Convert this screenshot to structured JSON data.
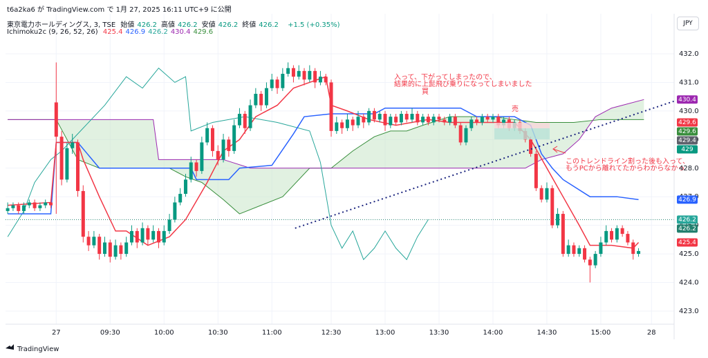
{
  "header": {
    "credit": "t6a2ka6 が TradingView.com で 1月 27, 2025 16:11 UTC+9 に公開",
    "symbol": "東京電力ホールディングス, 3, TSE",
    "ohlc": [
      {
        "label": "始値",
        "value": 426.2
      },
      {
        "label": "高値",
        "value": 426.2
      },
      {
        "label": "安値",
        "value": 426.2
      },
      {
        "label": "終値",
        "value": 426.2
      }
    ],
    "change": "+1.5 (+0.35%)",
    "indicator": "Ichimoku2c (9, 26, 52, 26)",
    "indicator_values": [
      {
        "value": 425.4,
        "color": "#f23645"
      },
      {
        "value": 426.9,
        "color": "#2962ff"
      },
      {
        "value": 426.2,
        "color": "#26a69a"
      },
      {
        "value": 430.4,
        "color": "#9c27b0"
      },
      {
        "value": 429.6,
        "color": "#388e3c"
      }
    ],
    "currency": "JPY"
  },
  "footer": {
    "brand": "TradingView"
  },
  "chart_data": {
    "type": "candlestick",
    "up_color": "#089981",
    "down_color": "#f23645",
    "xlim": [
      -0.4,
      123.6
    ],
    "ylim": [
      422.54,
      433.4
    ],
    "yticks": [
      {
        "value": 423,
        "label": "423.0"
      },
      {
        "value": 424,
        "label": "424.0"
      },
      {
        "value": 425,
        "label": "425.0"
      },
      {
        "value": 426,
        "label": "426.0"
      },
      {
        "value": 427,
        "label": "427.0"
      },
      {
        "value": 428,
        "label": "428.0"
      },
      {
        "value": 429,
        "label": "429.0"
      },
      {
        "value": 430,
        "label": "430.0"
      },
      {
        "value": 431,
        "label": "431.0"
      },
      {
        "value": 432,
        "label": "432.0"
      }
    ],
    "xticks": [
      {
        "value": 9,
        "label": "27"
      },
      {
        "value": 19,
        "label": "09:30"
      },
      {
        "value": 29,
        "label": "10:00"
      },
      {
        "value": 39,
        "label": "10:30"
      },
      {
        "value": 49,
        "label": "11:00"
      },
      {
        "value": 60,
        "label": "12:30"
      },
      {
        "value": 70,
        "label": "13:00"
      },
      {
        "value": 80,
        "label": "13:30"
      },
      {
        "value": 90,
        "label": "14:00"
      },
      {
        "value": 100,
        "label": "14:30"
      },
      {
        "value": 110,
        "label": "15:00"
      },
      {
        "value": 119.4,
        "label": "28"
      }
    ],
    "grid": true,
    "candles": [
      [
        426.5,
        426.8,
        426.4,
        426.6
      ],
      [
        426.6,
        426.8,
        426.5,
        426.7
      ],
      [
        426.7,
        426.8,
        426.4,
        426.5
      ],
      [
        426.5,
        426.8,
        426.4,
        426.7
      ],
      [
        426.7,
        426.9,
        426.6,
        426.8
      ],
      [
        426.8,
        426.9,
        426.5,
        426.6
      ],
      [
        426.6,
        426.8,
        426.5,
        426.7
      ],
      [
        426.7,
        426.9,
        426.6,
        426.8
      ],
      [
        426.8,
        426.9,
        426.6,
        426.7
      ],
      [
        430.3,
        431.7,
        426.4,
        429.1
      ],
      [
        429.1,
        429.3,
        427.4,
        427.6
      ],
      [
        427.6,
        428.9,
        427.5,
        428.7
      ],
      [
        428.7,
        429.2,
        428.5,
        428.9
      ],
      [
        428.9,
        429.0,
        427.0,
        427.2
      ],
      [
        427.2,
        427.4,
        425.4,
        425.6
      ],
      [
        425.6,
        425.8,
        425.1,
        425.3
      ],
      [
        425.3,
        425.8,
        425.2,
        425.6
      ],
      [
        425.6,
        425.7,
        424.8,
        425.0
      ],
      [
        425.0,
        425.6,
        424.9,
        425.4
      ],
      [
        425.4,
        425.5,
        424.7,
        424.9
      ],
      [
        424.9,
        425.5,
        424.8,
        425.3
      ],
      [
        425.3,
        425.4,
        424.8,
        425.0
      ],
      [
        425.0,
        425.6,
        424.9,
        425.4
      ],
      [
        425.4,
        426.0,
        425.3,
        425.8
      ],
      [
        425.8,
        425.9,
        425.2,
        425.4
      ],
      [
        425.4,
        426.1,
        425.3,
        425.9
      ],
      [
        425.9,
        426.0,
        425.3,
        425.5
      ],
      [
        425.5,
        426.0,
        425.4,
        425.8
      ],
      [
        425.8,
        425.9,
        425.2,
        425.4
      ],
      [
        425.4,
        426.0,
        425.3,
        425.8
      ],
      [
        425.8,
        426.4,
        425.7,
        426.2
      ],
      [
        426.2,
        427.0,
        426.1,
        426.8
      ],
      [
        426.8,
        427.3,
        426.7,
        427.1
      ],
      [
        427.1,
        427.8,
        427.0,
        427.6
      ],
      [
        427.6,
        428.4,
        427.5,
        428.2
      ],
      [
        428.2,
        428.3,
        427.7,
        427.9
      ],
      [
        427.9,
        429.1,
        427.8,
        428.9
      ],
      [
        428.9,
        429.6,
        428.8,
        429.4
      ],
      [
        429.4,
        429.5,
        428.4,
        428.6
      ],
      [
        428.6,
        428.8,
        428.1,
        428.3
      ],
      [
        428.3,
        429.2,
        428.2,
        429.0
      ],
      [
        429.0,
        429.1,
        428.4,
        428.6
      ],
      [
        428.6,
        429.7,
        428.5,
        429.5
      ],
      [
        429.5,
        430.1,
        429.4,
        429.9
      ],
      [
        429.9,
        430.0,
        429.2,
        429.4
      ],
      [
        429.4,
        430.4,
        429.3,
        430.2
      ],
      [
        430.2,
        430.8,
        430.1,
        430.6
      ],
      [
        430.6,
        430.7,
        430.0,
        430.2
      ],
      [
        430.2,
        431.0,
        430.1,
        430.8
      ],
      [
        430.8,
        431.3,
        430.7,
        431.1
      ],
      [
        431.1,
        431.2,
        430.6,
        430.8
      ],
      [
        430.8,
        431.5,
        430.7,
        431.3
      ],
      [
        431.3,
        431.7,
        431.2,
        431.5
      ],
      [
        431.5,
        431.6,
        431.0,
        431.2
      ],
      [
        431.2,
        431.6,
        431.1,
        431.4
      ],
      [
        431.4,
        431.5,
        430.9,
        431.1
      ],
      [
        431.1,
        431.6,
        431.0,
        431.4
      ],
      [
        431.4,
        431.5,
        430.8,
        431.0
      ],
      [
        431.0,
        431.4,
        430.9,
        431.2
      ],
      [
        431.2,
        431.3,
        430.9,
        431.0
      ],
      [
        431.0,
        431.1,
        429.1,
        429.3
      ],
      [
        429.3,
        429.8,
        429.2,
        429.6
      ],
      [
        429.6,
        429.7,
        429.2,
        429.4
      ],
      [
        429.4,
        429.9,
        429.3,
        429.7
      ],
      [
        429.7,
        429.8,
        429.3,
        429.5
      ],
      [
        429.5,
        430.0,
        429.4,
        429.8
      ],
      [
        429.8,
        429.9,
        429.4,
        429.6
      ],
      [
        429.6,
        430.1,
        429.5,
        430.0
      ],
      [
        430.0,
        430.1,
        429.6,
        429.7
      ],
      [
        429.7,
        430.0,
        429.6,
        429.9
      ],
      [
        429.9,
        430.0,
        429.3,
        429.5
      ],
      [
        429.5,
        429.9,
        429.4,
        429.8
      ],
      [
        429.8,
        429.9,
        429.5,
        429.6
      ],
      [
        429.6,
        430.0,
        429.5,
        429.9
      ],
      [
        429.9,
        430.0,
        429.6,
        429.7
      ],
      [
        429.7,
        430.1,
        429.6,
        429.9
      ],
      [
        429.9,
        430.0,
        429.5,
        429.6
      ],
      [
        429.6,
        429.9,
        429.5,
        429.8
      ],
      [
        429.8,
        429.9,
        429.5,
        429.6
      ],
      [
        429.6,
        429.9,
        429.5,
        429.8
      ],
      [
        429.8,
        429.9,
        429.6,
        429.7
      ],
      [
        429.7,
        429.8,
        429.5,
        429.6
      ],
      [
        429.6,
        429.9,
        429.5,
        429.8
      ],
      [
        429.8,
        429.9,
        429.4,
        429.5
      ],
      [
        429.5,
        429.6,
        428.8,
        428.9
      ],
      [
        428.9,
        429.5,
        428.8,
        429.4
      ],
      [
        429.4,
        429.8,
        429.3,
        429.7
      ],
      [
        429.7,
        429.8,
        429.5,
        429.6
      ],
      [
        429.6,
        429.9,
        429.5,
        429.8
      ],
      [
        429.8,
        429.9,
        429.6,
        429.7
      ],
      [
        429.7,
        429.9,
        429.6,
        429.8
      ],
      [
        429.8,
        429.9,
        429.4,
        429.5
      ],
      [
        429.5,
        429.8,
        429.4,
        429.7
      ],
      [
        429.7,
        429.8,
        429.3,
        429.4
      ],
      [
        429.4,
        429.7,
        429.3,
        429.6
      ],
      [
        429.6,
        429.7,
        429.2,
        429.3
      ],
      [
        429.3,
        429.4,
        428.9,
        429.0
      ],
      [
        429.0,
        429.1,
        428.4,
        428.5
      ],
      [
        428.5,
        428.6,
        427.2,
        427.3
      ],
      [
        427.3,
        427.4,
        426.8,
        426.9
      ],
      [
        426.9,
        427.5,
        426.8,
        427.3
      ],
      [
        427.3,
        427.4,
        425.9,
        426.0
      ],
      [
        426.0,
        426.6,
        425.9,
        426.4
      ],
      [
        426.4,
        426.5,
        424.9,
        425.0
      ],
      [
        425.0,
        425.5,
        424.9,
        425.3
      ],
      [
        425.3,
        425.4,
        424.9,
        425.0
      ],
      [
        425.0,
        425.3,
        424.9,
        425.2
      ],
      [
        425.2,
        425.3,
        424.7,
        424.8
      ],
      [
        424.8,
        424.9,
        424.0,
        424.6
      ],
      [
        424.6,
        425.1,
        424.5,
        425.0
      ],
      [
        425.0,
        425.6,
        424.9,
        425.4
      ],
      [
        425.4,
        426.0,
        425.3,
        425.8
      ],
      [
        425.8,
        425.9,
        425.4,
        425.5
      ],
      [
        425.5,
        426.0,
        425.4,
        425.9
      ],
      [
        425.9,
        426.0,
        425.6,
        425.7
      ],
      [
        425.7,
        425.8,
        425.3,
        425.4
      ],
      [
        425.4,
        425.5,
        424.8,
        425.0
      ],
      [
        425.0,
        425.2,
        424.9,
        425.1
      ]
    ],
    "cloud_color": "#c8e6c9",
    "lines": [
      {
        "color": "#388e3c",
        "x": [
          0,
          9,
          13,
          17,
          30,
          33,
          36,
          40,
          43,
          47,
          51,
          56,
          60,
          64,
          68,
          71,
          74,
          77,
          82,
          90,
          94,
          98,
          105,
          110,
          118
        ],
        "values": [
          429.7,
          429.7,
          428.3,
          428.0,
          428.0,
          427.7,
          427.5,
          426.9,
          426.4,
          426.7,
          427.0,
          428.0,
          428.0,
          428.6,
          429.1,
          429.3,
          429.3,
          429.5,
          429.8,
          429.8,
          429.7,
          429.6,
          429.6,
          429.7,
          429.7
        ]
      },
      {
        "color": "#9c27b0",
        "x": [
          0,
          9,
          22,
          27,
          28,
          40,
          45,
          70,
          85,
          96,
          99,
          103,
          106,
          109,
          112,
          118
        ],
        "values": [
          429.7,
          429.7,
          429.7,
          429.7,
          428.3,
          428.3,
          428.0,
          428.0,
          428.0,
          428.0,
          428.3,
          428.5,
          429.0,
          429.8,
          430.1,
          430.4
        ]
      },
      {
        "color": "#26a69a",
        "x": [
          0,
          3,
          5,
          8,
          10,
          14,
          18,
          22,
          25,
          28,
          31,
          33,
          34,
          38,
          44,
          50,
          56,
          58,
          60,
          62,
          64,
          66,
          68,
          70,
          72,
          74,
          76,
          78
        ],
        "values": [
          425.6,
          426.5,
          427.5,
          428.3,
          428.6,
          429.4,
          430.2,
          431.2,
          430.8,
          431.5,
          431.0,
          431.2,
          429.3,
          429.6,
          429.8,
          429.6,
          429.3,
          428.2,
          426.0,
          425.2,
          425.8,
          424.8,
          425.2,
          425.8,
          425.2,
          424.8,
          425.6,
          426.2
        ]
      },
      {
        "color": "#2962ff",
        "x": [
          0,
          8,
          9,
          13,
          17,
          34,
          35,
          41,
          43,
          49,
          53,
          55,
          60,
          68,
          70,
          84,
          87,
          94,
          97,
          99,
          101,
          103,
          108,
          113,
          117
        ],
        "values": [
          426.4,
          426.4,
          428.9,
          428.9,
          428.0,
          428.0,
          427.6,
          427.6,
          428.0,
          428.1,
          429.2,
          429.8,
          429.9,
          429.9,
          430.1,
          430.1,
          429.8,
          429.8,
          429.5,
          428.5,
          428.0,
          427.6,
          427.0,
          427.0,
          426.9
        ]
      },
      {
        "color": "#f23645",
        "x": [
          0,
          8,
          9,
          13,
          14,
          17,
          20,
          22,
          26,
          30,
          33,
          37,
          40,
          43,
          46,
          50,
          53,
          56,
          59,
          60,
          63,
          67,
          72,
          78,
          82,
          90,
          94,
          97,
          100,
          103,
          106,
          108,
          112,
          116,
          117
        ],
        "values": [
          426.7,
          426.8,
          428.9,
          428.9,
          428.3,
          427.0,
          425.8,
          425.8,
          425.3,
          425.6,
          426.2,
          427.5,
          428.6,
          429.0,
          429.8,
          430.2,
          430.8,
          431.0,
          431.2,
          430.2,
          430.0,
          429.7,
          429.5,
          429.7,
          429.6,
          429.6,
          429.6,
          429.0,
          428.0,
          427.0,
          426.0,
          425.3,
          425.3,
          425.2,
          425.4
        ]
      }
    ],
    "trendline": {
      "color": "#1a237e",
      "x": [
        53.3,
        124.5
      ],
      "values": [
        425.9,
        430.4
      ]
    },
    "price_labels": [
      {
        "value": 430.4,
        "color": "#9c27b0"
      },
      {
        "value": 429.6,
        "color": "#f23645"
      },
      {
        "value": 429.6,
        "color": "#388e3c"
      },
      {
        "value": 429.4,
        "color": "#5d606b"
      },
      {
        "value": 429.0,
        "color": "#089981"
      },
      {
        "value": 426.9,
        "color": "#2962ff"
      },
      {
        "value": 426.2,
        "color": "#26a69a"
      },
      {
        "value": 426.2,
        "color": "#22806f",
        "line": true
      },
      {
        "value": 425.4,
        "color": "#f23645"
      }
    ],
    "annotations": [
      "入って、下がってしまったので、",
      "結果的に上髭飛び乗りになってしまいました",
      "買",
      "売",
      "このトレンドライン割った後も入って、",
      "もうPCから離れてたからわからなかっ"
    ]
  }
}
